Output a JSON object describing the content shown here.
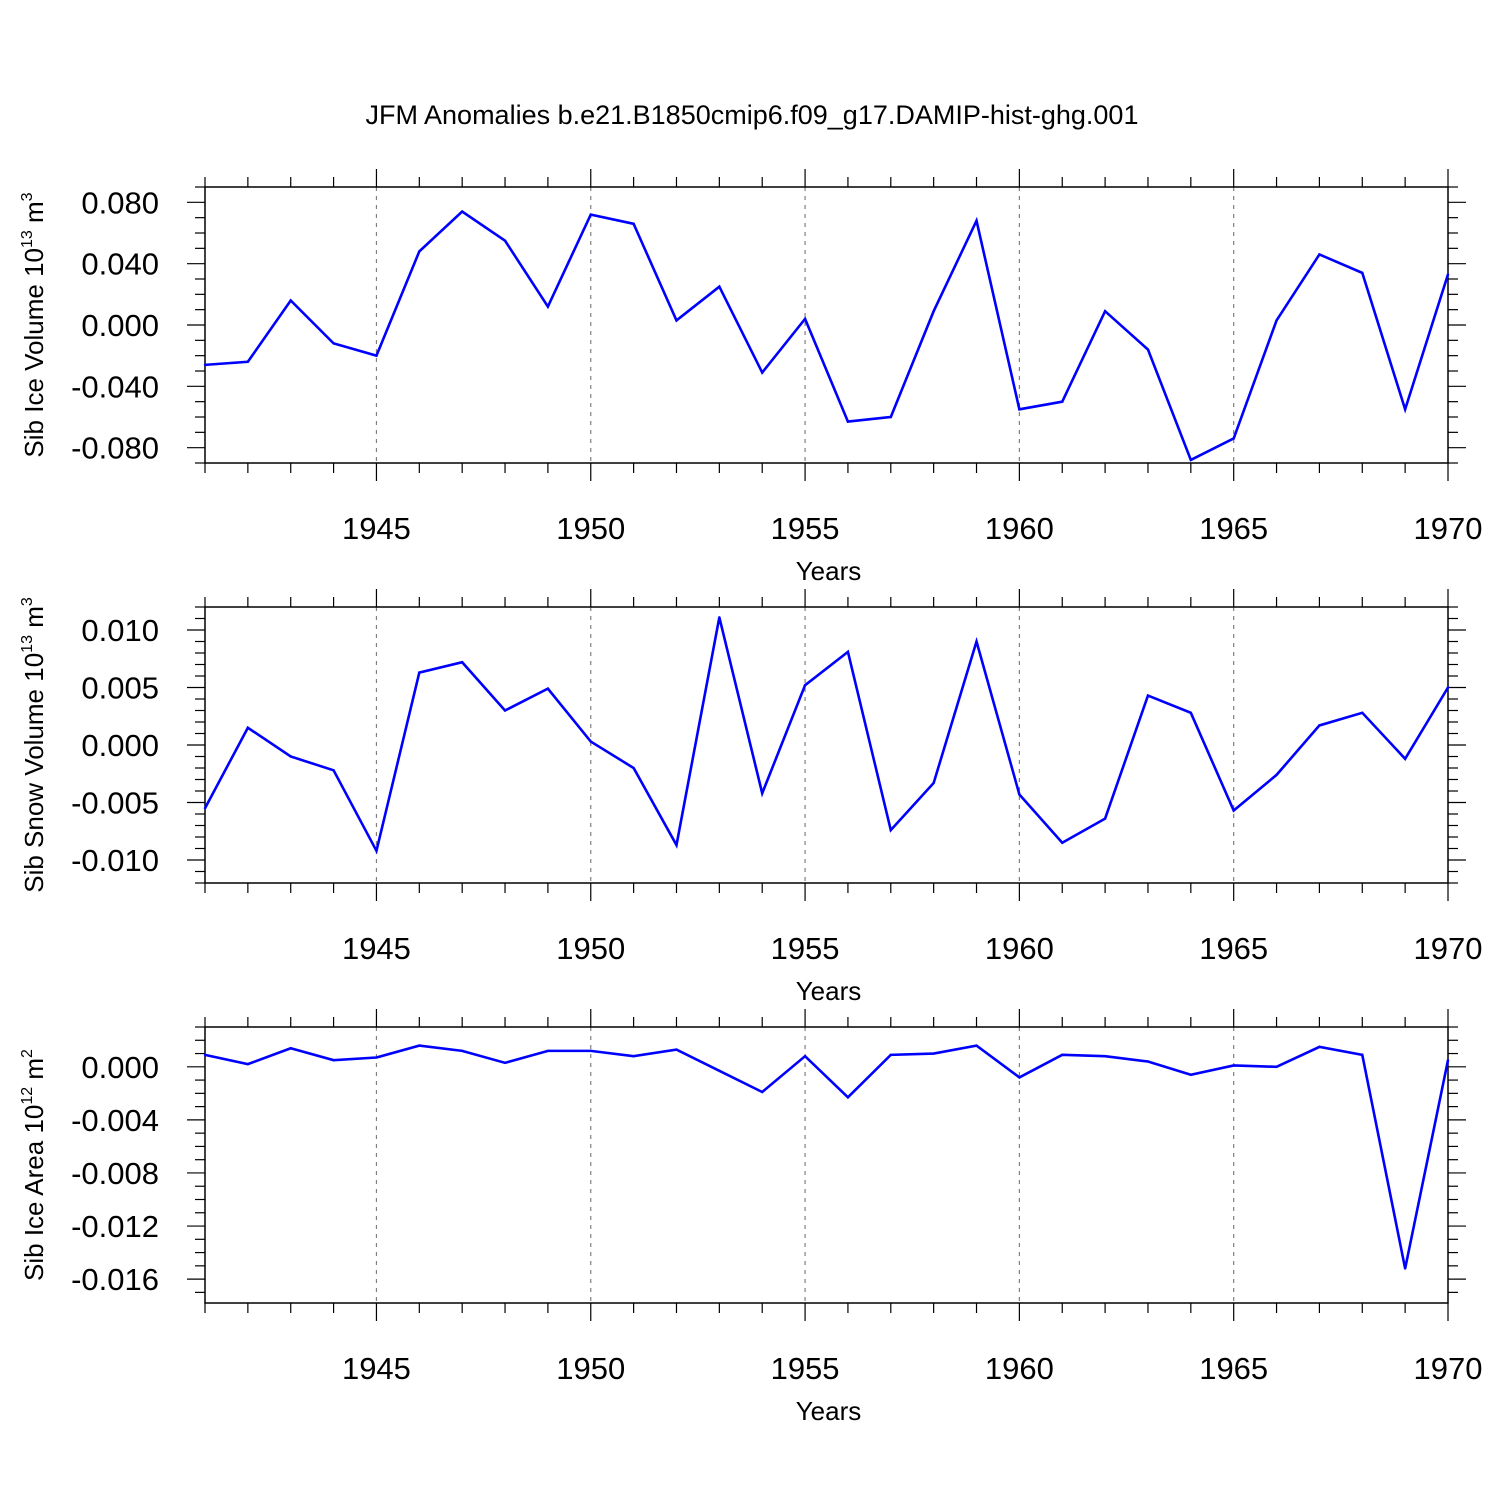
{
  "figure": {
    "title": "JFM Anomalies b.e21.B1850cmip6.f09_g17.DAMIP-hist-ghg.001",
    "line_color": "#0000ff",
    "grid_color": "#808080"
  },
  "chart_data": [
    {
      "type": "line",
      "name": "sib-ice-volume",
      "xlabel": "Years",
      "ylabel": {
        "main": "Sib Ice Volume 10",
        "exp": "13",
        "unit": " m",
        "unit_exp": "3"
      },
      "xlim": [
        1941,
        1970
      ],
      "ylim": [
        -0.09,
        0.09
      ],
      "x_ticks": [
        1945,
        1950,
        1955,
        1960,
        1965,
        1970
      ],
      "x_tick_labels": [
        "1945",
        "1950",
        "1955",
        "1960",
        "1965",
        "1970"
      ],
      "y_ticks": [
        0.08,
        0.04,
        0.0,
        -0.04,
        -0.08
      ],
      "y_tick_labels": [
        "0.080",
        "0.040",
        "0.000",
        "-0.040",
        "-0.080"
      ],
      "y_minor_step": 0.01,
      "grid": "x-major-dashed",
      "x": [
        1941,
        1942,
        1943,
        1944,
        1945,
        1946,
        1947,
        1948,
        1949,
        1950,
        1951,
        1952,
        1953,
        1954,
        1955,
        1956,
        1957,
        1958,
        1959,
        1960,
        1961,
        1962,
        1963,
        1964,
        1965,
        1966,
        1967,
        1968,
        1969,
        1970
      ],
      "values": [
        -0.026,
        -0.024,
        0.016,
        -0.012,
        -0.02,
        0.048,
        0.074,
        0.055,
        0.012,
        0.072,
        0.066,
        0.003,
        0.025,
        -0.031,
        0.004,
        -0.063,
        -0.06,
        0.009,
        0.068,
        -0.055,
        -0.05,
        0.009,
        -0.016,
        -0.088,
        -0.074,
        0.003,
        0.046,
        0.034,
        -0.055,
        0.033
      ]
    },
    {
      "type": "line",
      "name": "sib-snow-volume",
      "xlabel": "Years",
      "ylabel": {
        "main": "Sib Snow Volume 10",
        "exp": "13",
        "unit": " m",
        "unit_exp": "3"
      },
      "xlim": [
        1941,
        1970
      ],
      "ylim": [
        -0.012,
        0.012
      ],
      "x_ticks": [
        1945,
        1950,
        1955,
        1960,
        1965,
        1970
      ],
      "x_tick_labels": [
        "1945",
        "1950",
        "1955",
        "1960",
        "1965",
        "1970"
      ],
      "y_ticks": [
        0.01,
        0.005,
        0.0,
        -0.005,
        -0.01
      ],
      "y_tick_labels": [
        "0.010",
        "0.005",
        "0.000",
        "-0.005",
        "-0.010"
      ],
      "y_minor_step": 0.001,
      "grid": "x-major-dashed",
      "x": [
        1941,
        1942,
        1943,
        1944,
        1945,
        1946,
        1947,
        1948,
        1949,
        1950,
        1951,
        1952,
        1953,
        1954,
        1955,
        1956,
        1957,
        1958,
        1959,
        1960,
        1961,
        1962,
        1963,
        1964,
        1965,
        1966,
        1967,
        1968,
        1969,
        1970
      ],
      "values": [
        -0.0055,
        0.0015,
        -0.001,
        -0.0022,
        -0.0092,
        0.0063,
        0.0072,
        0.003,
        0.0049,
        0.0003,
        -0.002,
        -0.0087,
        0.0111,
        -0.0042,
        0.0052,
        0.0081,
        -0.0074,
        -0.0033,
        0.009,
        -0.0043,
        -0.0085,
        -0.0064,
        0.0043,
        0.0028,
        -0.0057,
        -0.0026,
        0.0017,
        0.0028,
        -0.0012,
        0.005
      ]
    },
    {
      "type": "line",
      "name": "sib-ice-area",
      "xlabel": "Years",
      "ylabel": {
        "main": "Sib Ice Area 10",
        "exp": "12",
        "unit": " m",
        "unit_exp": "2"
      },
      "xlim": [
        1941,
        1970
      ],
      "ylim": [
        -0.0178,
        0.003
      ],
      "x_ticks": [
        1945,
        1950,
        1955,
        1960,
        1965,
        1970
      ],
      "x_tick_labels": [
        "1945",
        "1950",
        "1955",
        "1960",
        "1965",
        "1970"
      ],
      "y_ticks": [
        0.0,
        -0.004,
        -0.008,
        -0.012,
        -0.016
      ],
      "y_tick_labels": [
        "0.000",
        "-0.004",
        "-0.008",
        "-0.012",
        "-0.016"
      ],
      "y_minor_step": 0.001,
      "grid": "x-major-dashed",
      "x": [
        1941,
        1942,
        1943,
        1944,
        1945,
        1946,
        1947,
        1948,
        1949,
        1950,
        1951,
        1952,
        1953,
        1954,
        1955,
        1956,
        1957,
        1958,
        1959,
        1960,
        1961,
        1962,
        1963,
        1964,
        1965,
        1966,
        1967,
        1968,
        1969,
        1970
      ],
      "values": [
        0.0009,
        0.0002,
        0.0014,
        0.0005,
        0.0007,
        0.0016,
        0.0012,
        0.0003,
        0.0012,
        0.0012,
        0.0008,
        0.0013,
        -0.0003,
        -0.0019,
        0.0008,
        -0.0023,
        0.0009,
        0.001,
        0.0016,
        -0.0008,
        0.0009,
        0.0008,
        0.0004,
        -0.0006,
        0.0001,
        0.0,
        0.0015,
        0.0009,
        -0.0152,
        0.0005
      ]
    }
  ]
}
